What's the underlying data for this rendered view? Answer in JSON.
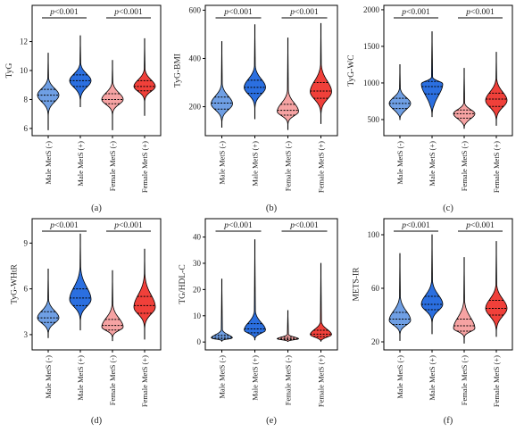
{
  "chart_data": [
    {
      "type": "violin",
      "panel_label": "(a)",
      "ylabel": "TyG",
      "ylim": [
        5.5,
        14.5
      ],
      "yticks": [
        6,
        8,
        10,
        12
      ],
      "categories": [
        "Male MetS (-)",
        "Male MetS (+)",
        "Female MetS (-)",
        "Female MetS (+)"
      ],
      "colors": [
        "#6f9fe4",
        "#2b6fe0",
        "#f6a3a3",
        "#f0403a"
      ],
      "groups": [
        {
          "min": 5.9,
          "q1": 7.9,
          "median": 8.3,
          "q3": 8.7,
          "max": 11.2,
          "peak": 8.3
        },
        {
          "min": 7.5,
          "q1": 8.9,
          "median": 9.3,
          "q3": 9.7,
          "max": 12.4,
          "peak": 9.3
        },
        {
          "min": 5.9,
          "q1": 7.7,
          "median": 8.0,
          "q3": 8.4,
          "max": 10.7,
          "peak": 8.0
        },
        {
          "min": 6.9,
          "q1": 8.6,
          "median": 8.9,
          "q3": 9.3,
          "max": 12.2,
          "peak": 8.9
        }
      ],
      "comparisons": [
        {
          "between": [
            0,
            1
          ],
          "text": "p<0.001"
        },
        {
          "between": [
            2,
            3
          ],
          "text": "p<0.001"
        }
      ]
    },
    {
      "type": "violin",
      "panel_label": "(b)",
      "ylabel": "TyG-BMI",
      "ylim": [
        80,
        620
      ],
      "yticks": [
        200,
        400,
        600
      ],
      "categories": [
        "Male MetS (-)",
        "Male MetS (+)",
        "Female MetS (-)",
        "Female MetS (+)"
      ],
      "colors": [
        "#6f9fe4",
        "#2b6fe0",
        "#f6a3a3",
        "#f0403a"
      ],
      "groups": [
        {
          "min": 115,
          "q1": 190,
          "median": 215,
          "q3": 240,
          "max": 470,
          "peak": 212
        },
        {
          "min": 150,
          "q1": 255,
          "median": 280,
          "q3": 310,
          "max": 540,
          "peak": 280
        },
        {
          "min": 105,
          "q1": 165,
          "median": 185,
          "q3": 210,
          "max": 485,
          "peak": 180
        },
        {
          "min": 130,
          "q1": 235,
          "median": 265,
          "q3": 300,
          "max": 545,
          "peak": 262
        }
      ],
      "comparisons": [
        {
          "between": [
            0,
            1
          ],
          "text": "p<0.001"
        },
        {
          "between": [
            2,
            3
          ],
          "text": "p<0.001"
        }
      ]
    },
    {
      "type": "violin",
      "panel_label": "(c)",
      "ylabel": "TyG-WC",
      "ylim": [
        280,
        2060
      ],
      "yticks": [
        500,
        1000,
        1500,
        2000
      ],
      "categories": [
        "Male MetS (-)",
        "Male MetS (+)",
        "Female MetS (-)",
        "Female MetS (+)"
      ],
      "colors": [
        "#6f9fe4",
        "#2b6fe0",
        "#f6a3a3",
        "#f0403a"
      ],
      "groups": [
        {
          "min": 500,
          "q1": 650,
          "median": 720,
          "q3": 790,
          "max": 1250,
          "peak": 720
        },
        {
          "min": 540,
          "q1": 850,
          "median": 950,
          "q3": 1020,
          "max": 1700,
          "peak": 990
        },
        {
          "min": 380,
          "q1": 520,
          "median": 580,
          "q3": 630,
          "max": 1200,
          "peak": 580
        },
        {
          "min": 420,
          "q1": 680,
          "median": 780,
          "q3": 860,
          "max": 1420,
          "peak": 760
        }
      ],
      "comparisons": [
        {
          "between": [
            0,
            1
          ],
          "text": "p<0.001"
        },
        {
          "between": [
            2,
            3
          ],
          "text": "p<0.001"
        }
      ]
    },
    {
      "type": "violin",
      "panel_label": "(d)",
      "ylabel": "TyG-WHtR",
      "ylim": [
        2.0,
        10.6
      ],
      "yticks": [
        3,
        6,
        9
      ],
      "categories": [
        "Male MetS (-)",
        "Male MetS (+)",
        "Female MetS (-)",
        "Female MetS (+)"
      ],
      "colors": [
        "#6f9fe4",
        "#2b6fe0",
        "#f6a3a3",
        "#f0403a"
      ],
      "groups": [
        {
          "min": 2.8,
          "q1": 3.8,
          "median": 4.1,
          "q3": 4.5,
          "max": 7.3,
          "peak": 4.1
        },
        {
          "min": 3.3,
          "q1": 4.9,
          "median": 5.4,
          "q3": 6.0,
          "max": 9.6,
          "peak": 5.3
        },
        {
          "min": 2.6,
          "q1": 3.3,
          "median": 3.6,
          "q3": 4.0,
          "max": 7.2,
          "peak": 3.5
        },
        {
          "min": 2.7,
          "q1": 4.4,
          "median": 4.9,
          "q3": 5.5,
          "max": 8.6,
          "peak": 4.8
        }
      ],
      "comparisons": [
        {
          "between": [
            0,
            1
          ],
          "text": "p<0.001"
        },
        {
          "between": [
            2,
            3
          ],
          "text": "p<0.001"
        }
      ]
    },
    {
      "type": "violin",
      "panel_label": "(e)",
      "ylabel": "TG/HDL-C",
      "ylim": [
        -3,
        47
      ],
      "yticks": [
        0,
        10,
        20,
        30,
        40
      ],
      "categories": [
        "Male MetS (-)",
        "Male MetS (+)",
        "Female MetS (-)",
        "Female MetS (+)"
      ],
      "colors": [
        "#6f9fe4",
        "#2b6fe0",
        "#f6a3a3",
        "#f0403a"
      ],
      "groups": [
        {
          "min": 0.3,
          "q1": 1.2,
          "median": 1.8,
          "q3": 2.6,
          "max": 24.0,
          "peak": 1.5
        },
        {
          "min": 0.8,
          "q1": 3.5,
          "median": 5.0,
          "q3": 7.0,
          "max": 39.0,
          "peak": 4.5
        },
        {
          "min": 0.2,
          "q1": 0.9,
          "median": 1.3,
          "q3": 1.8,
          "max": 12.0,
          "peak": 1.2
        },
        {
          "min": 0.3,
          "q1": 2.0,
          "median": 3.0,
          "q3": 4.5,
          "max": 30.0,
          "peak": 2.8
        }
      ],
      "comparisons": [
        {
          "between": [
            0,
            1
          ],
          "text": "p<0.001"
        },
        {
          "between": [
            2,
            3
          ],
          "text": "p<0.001"
        }
      ]
    },
    {
      "type": "violin",
      "panel_label": "(f)",
      "ylabel": "METS-IR",
      "ylim": [
        14,
        112
      ],
      "yticks": [
        20,
        60,
        100
      ],
      "categories": [
        "Male MetS (-)",
        "Male MetS (+)",
        "Female MetS (-)",
        "Female MetS (+)"
      ],
      "colors": [
        "#6f9fe4",
        "#2b6fe0",
        "#f6a3a3",
        "#f0403a"
      ],
      "groups": [
        {
          "min": 21,
          "q1": 33,
          "median": 37,
          "q3": 42,
          "max": 86,
          "peak": 36
        },
        {
          "min": 26,
          "q1": 44,
          "median": 48,
          "q3": 54,
          "max": 100,
          "peak": 48
        },
        {
          "min": 19,
          "q1": 28,
          "median": 32,
          "q3": 37,
          "max": 83,
          "peak": 30
        },
        {
          "min": 24,
          "q1": 40,
          "median": 45,
          "q3": 51,
          "max": 95,
          "peak": 45
        }
      ],
      "comparisons": [
        {
          "between": [
            0,
            1
          ],
          "text": "p<0.001"
        },
        {
          "between": [
            2,
            3
          ],
          "text": "p<0.001"
        }
      ]
    }
  ]
}
